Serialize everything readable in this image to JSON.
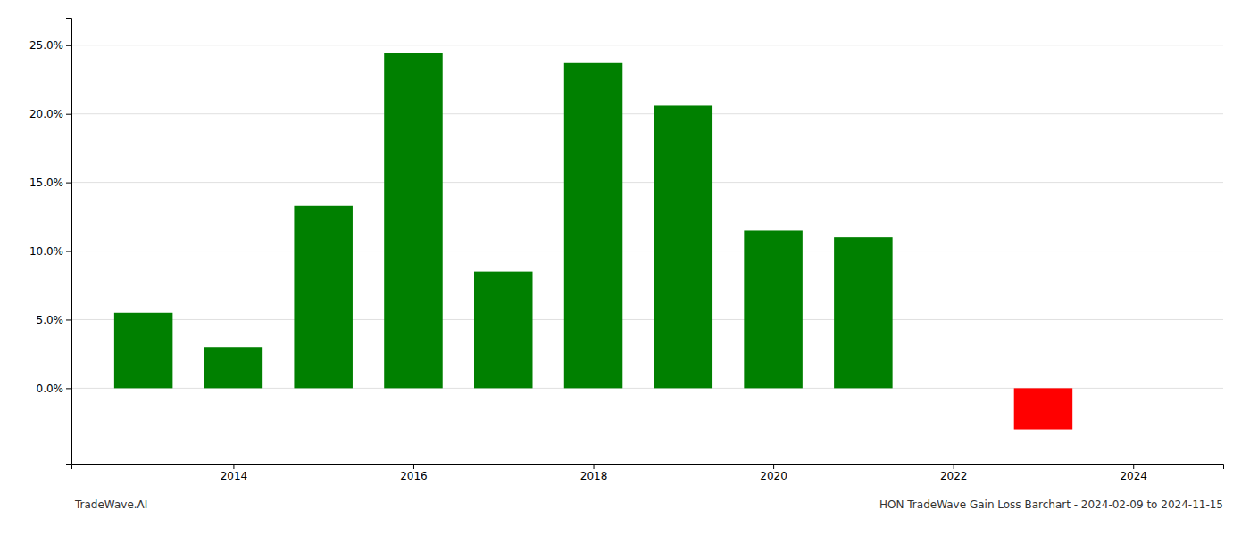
{
  "chart_data": {
    "type": "bar",
    "x": [
      2013,
      2014,
      2015,
      2016,
      2017,
      2018,
      2019,
      2020,
      2021,
      2023
    ],
    "values": [
      0.055,
      0.03,
      0.133,
      0.244,
      0.085,
      0.237,
      0.206,
      0.115,
      0.11,
      -0.03
    ],
    "colors": [
      "#008000",
      "#008000",
      "#008000",
      "#008000",
      "#008000",
      "#008000",
      "#008000",
      "#008000",
      "#008000",
      "#ff0000"
    ],
    "xlim": [
      2012.2,
      2025.0
    ],
    "xticks": [
      2014,
      2016,
      2018,
      2020,
      2022,
      2024
    ],
    "ylim": [
      -0.055,
      0.27
    ],
    "yticks": [
      {
        "value": 0.0,
        "label": "0.0%"
      },
      {
        "value": 0.05,
        "label": "5.0%"
      },
      {
        "value": 0.1,
        "label": "10.0%"
      },
      {
        "value": 0.15,
        "label": "15.0%"
      },
      {
        "value": 0.2,
        "label": "20.0%"
      },
      {
        "value": 0.25,
        "label": "25.0%"
      }
    ],
    "grid": true,
    "annotations": [
      "TradeWave.AI",
      "HON TradeWave Gain Loss Barchart - 2024-02-09 to 2024-11-15"
    ]
  }
}
